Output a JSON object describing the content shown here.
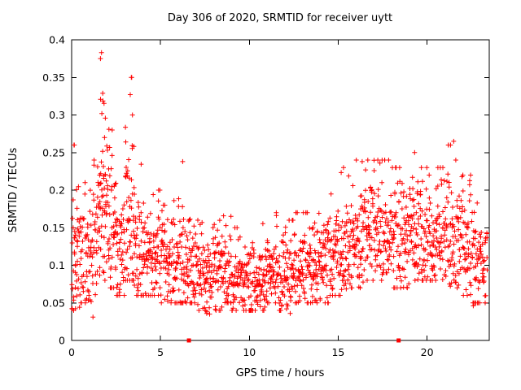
{
  "figure": {
    "background": "#ffffff",
    "border_color": "#000000"
  },
  "chart_data": {
    "type": "scatter",
    "title": "Day 306 of 2020, SRMTID for receiver uytt",
    "xlabel": "GPS time / hours",
    "ylabel": "SRMTID / TECUs",
    "xlim": [
      0,
      23.5
    ],
    "ylim": [
      0,
      0.4
    ],
    "xticks": [
      0,
      5,
      10,
      15,
      20
    ],
    "xtick_labels": [
      "0",
      "5",
      "10",
      "15",
      "20"
    ],
    "yticks": [
      0,
      0.05,
      0.1,
      0.15,
      0.2,
      0.25,
      0.3,
      0.35,
      0.4
    ],
    "ytick_labels": [
      "0",
      "0.05",
      "0.1",
      "0.15",
      "0.2",
      "0.25",
      "0.3",
      "0.35",
      "0.4"
    ],
    "grid": false,
    "legend": "none",
    "series_name": "SRMTID",
    "marker": {
      "shape": "plus",
      "color": "#ff0000",
      "size": 7
    },
    "seed": 306,
    "density_bins": [
      [
        0.0,
        0.5,
        46,
        0.13,
        0.05,
        0.04,
        0.26
      ],
      [
        0.5,
        1.0,
        40,
        0.11,
        0.035,
        0.05,
        0.21
      ],
      [
        1.0,
        1.5,
        40,
        0.13,
        0.04,
        0.03,
        0.24
      ],
      [
        1.5,
        2.0,
        56,
        0.19,
        0.055,
        0.08,
        0.38
      ],
      [
        2.0,
        2.5,
        46,
        0.15,
        0.05,
        0.07,
        0.28
      ],
      [
        2.5,
        3.0,
        40,
        0.12,
        0.04,
        0.06,
        0.22
      ],
      [
        3.0,
        3.5,
        50,
        0.17,
        0.055,
        0.08,
        0.35
      ],
      [
        3.5,
        4.0,
        40,
        0.13,
        0.04,
        0.06,
        0.24
      ],
      [
        4.0,
        4.5,
        40,
        0.11,
        0.03,
        0.06,
        0.19
      ],
      [
        4.5,
        5.0,
        40,
        0.12,
        0.035,
        0.06,
        0.2
      ],
      [
        5.0,
        5.5,
        40,
        0.1,
        0.03,
        0.05,
        0.18
      ],
      [
        5.5,
        6.0,
        40,
        0.1,
        0.035,
        0.05,
        0.19
      ],
      [
        6.0,
        6.5,
        42,
        0.11,
        0.04,
        0.05,
        0.24
      ],
      [
        6.5,
        7.0,
        40,
        0.1,
        0.03,
        0.05,
        0.18
      ],
      [
        7.0,
        7.5,
        40,
        0.09,
        0.03,
        0.04,
        0.16
      ],
      [
        7.5,
        8.0,
        40,
        0.09,
        0.025,
        0.035,
        0.15
      ],
      [
        8.0,
        8.5,
        40,
        0.09,
        0.03,
        0.04,
        0.17
      ],
      [
        8.5,
        9.0,
        40,
        0.1,
        0.03,
        0.05,
        0.18
      ],
      [
        9.0,
        9.5,
        40,
        0.085,
        0.025,
        0.04,
        0.15
      ],
      [
        9.5,
        10.0,
        40,
        0.08,
        0.02,
        0.04,
        0.14
      ],
      [
        10.0,
        10.5,
        40,
        0.08,
        0.025,
        0.04,
        0.15
      ],
      [
        10.5,
        11.0,
        40,
        0.085,
        0.025,
        0.04,
        0.16
      ],
      [
        11.0,
        11.5,
        40,
        0.09,
        0.025,
        0.05,
        0.16
      ],
      [
        11.5,
        12.0,
        40,
        0.09,
        0.03,
        0.04,
        0.17
      ],
      [
        12.0,
        12.5,
        42,
        0.09,
        0.03,
        0.04,
        0.16
      ],
      [
        12.5,
        13.0,
        42,
        0.095,
        0.03,
        0.05,
        0.17
      ],
      [
        13.0,
        13.5,
        40,
        0.1,
        0.03,
        0.05,
        0.17
      ],
      [
        13.5,
        14.0,
        40,
        0.1,
        0.03,
        0.05,
        0.18
      ],
      [
        14.0,
        14.5,
        40,
        0.105,
        0.035,
        0.05,
        0.2
      ],
      [
        14.5,
        15.0,
        40,
        0.11,
        0.035,
        0.06,
        0.21
      ],
      [
        15.0,
        15.5,
        42,
        0.12,
        0.04,
        0.06,
        0.23
      ],
      [
        15.5,
        16.0,
        40,
        0.12,
        0.035,
        0.07,
        0.22
      ],
      [
        16.0,
        16.5,
        42,
        0.13,
        0.04,
        0.07,
        0.24
      ],
      [
        16.5,
        17.0,
        42,
        0.14,
        0.04,
        0.08,
        0.24
      ],
      [
        17.0,
        17.5,
        44,
        0.15,
        0.04,
        0.08,
        0.24
      ],
      [
        17.5,
        18.0,
        44,
        0.15,
        0.04,
        0.09,
        0.24
      ],
      [
        18.0,
        18.5,
        42,
        0.14,
        0.04,
        0.07,
        0.23
      ],
      [
        18.5,
        19.0,
        40,
        0.13,
        0.035,
        0.07,
        0.22
      ],
      [
        19.0,
        19.5,
        42,
        0.14,
        0.04,
        0.08,
        0.25
      ],
      [
        19.5,
        20.0,
        40,
        0.14,
        0.035,
        0.08,
        0.23
      ],
      [
        20.0,
        20.5,
        40,
        0.13,
        0.035,
        0.08,
        0.22
      ],
      [
        20.5,
        21.0,
        40,
        0.135,
        0.035,
        0.08,
        0.23
      ],
      [
        21.0,
        21.5,
        42,
        0.14,
        0.04,
        0.07,
        0.26
      ],
      [
        21.5,
        22.0,
        40,
        0.13,
        0.04,
        0.07,
        0.24
      ],
      [
        22.0,
        22.5,
        40,
        0.12,
        0.035,
        0.06,
        0.22
      ],
      [
        22.5,
        23.0,
        40,
        0.11,
        0.035,
        0.05,
        0.2
      ],
      [
        23.0,
        23.4,
        32,
        0.11,
        0.03,
        0.05,
        0.18
      ]
    ],
    "outliers": [
      [
        0.15,
        0.26
      ],
      [
        1.2,
        0.031
      ],
      [
        1.62,
        0.375
      ],
      [
        1.68,
        0.383
      ],
      [
        1.7,
        0.302
      ],
      [
        1.75,
        0.329
      ],
      [
        1.85,
        0.27
      ],
      [
        2.1,
        0.281
      ],
      [
        3.3,
        0.327
      ],
      [
        3.38,
        0.35
      ],
      [
        3.42,
        0.3
      ],
      [
        3.5,
        0.258
      ],
      [
        6.25,
        0.238
      ],
      [
        7.6,
        0.036
      ],
      [
        10.1,
        0.041
      ],
      [
        12.3,
        0.036
      ],
      [
        15.3,
        0.23
      ],
      [
        16.35,
        0.238
      ],
      [
        19.3,
        0.25
      ],
      [
        21.5,
        0.265
      ],
      [
        22.6,
        0.046
      ]
    ],
    "axis_markers": {
      "shape": "filled-square",
      "color": "#ff0000",
      "points": [
        [
          6.6,
          0
        ],
        [
          18.4,
          0
        ]
      ]
    }
  }
}
